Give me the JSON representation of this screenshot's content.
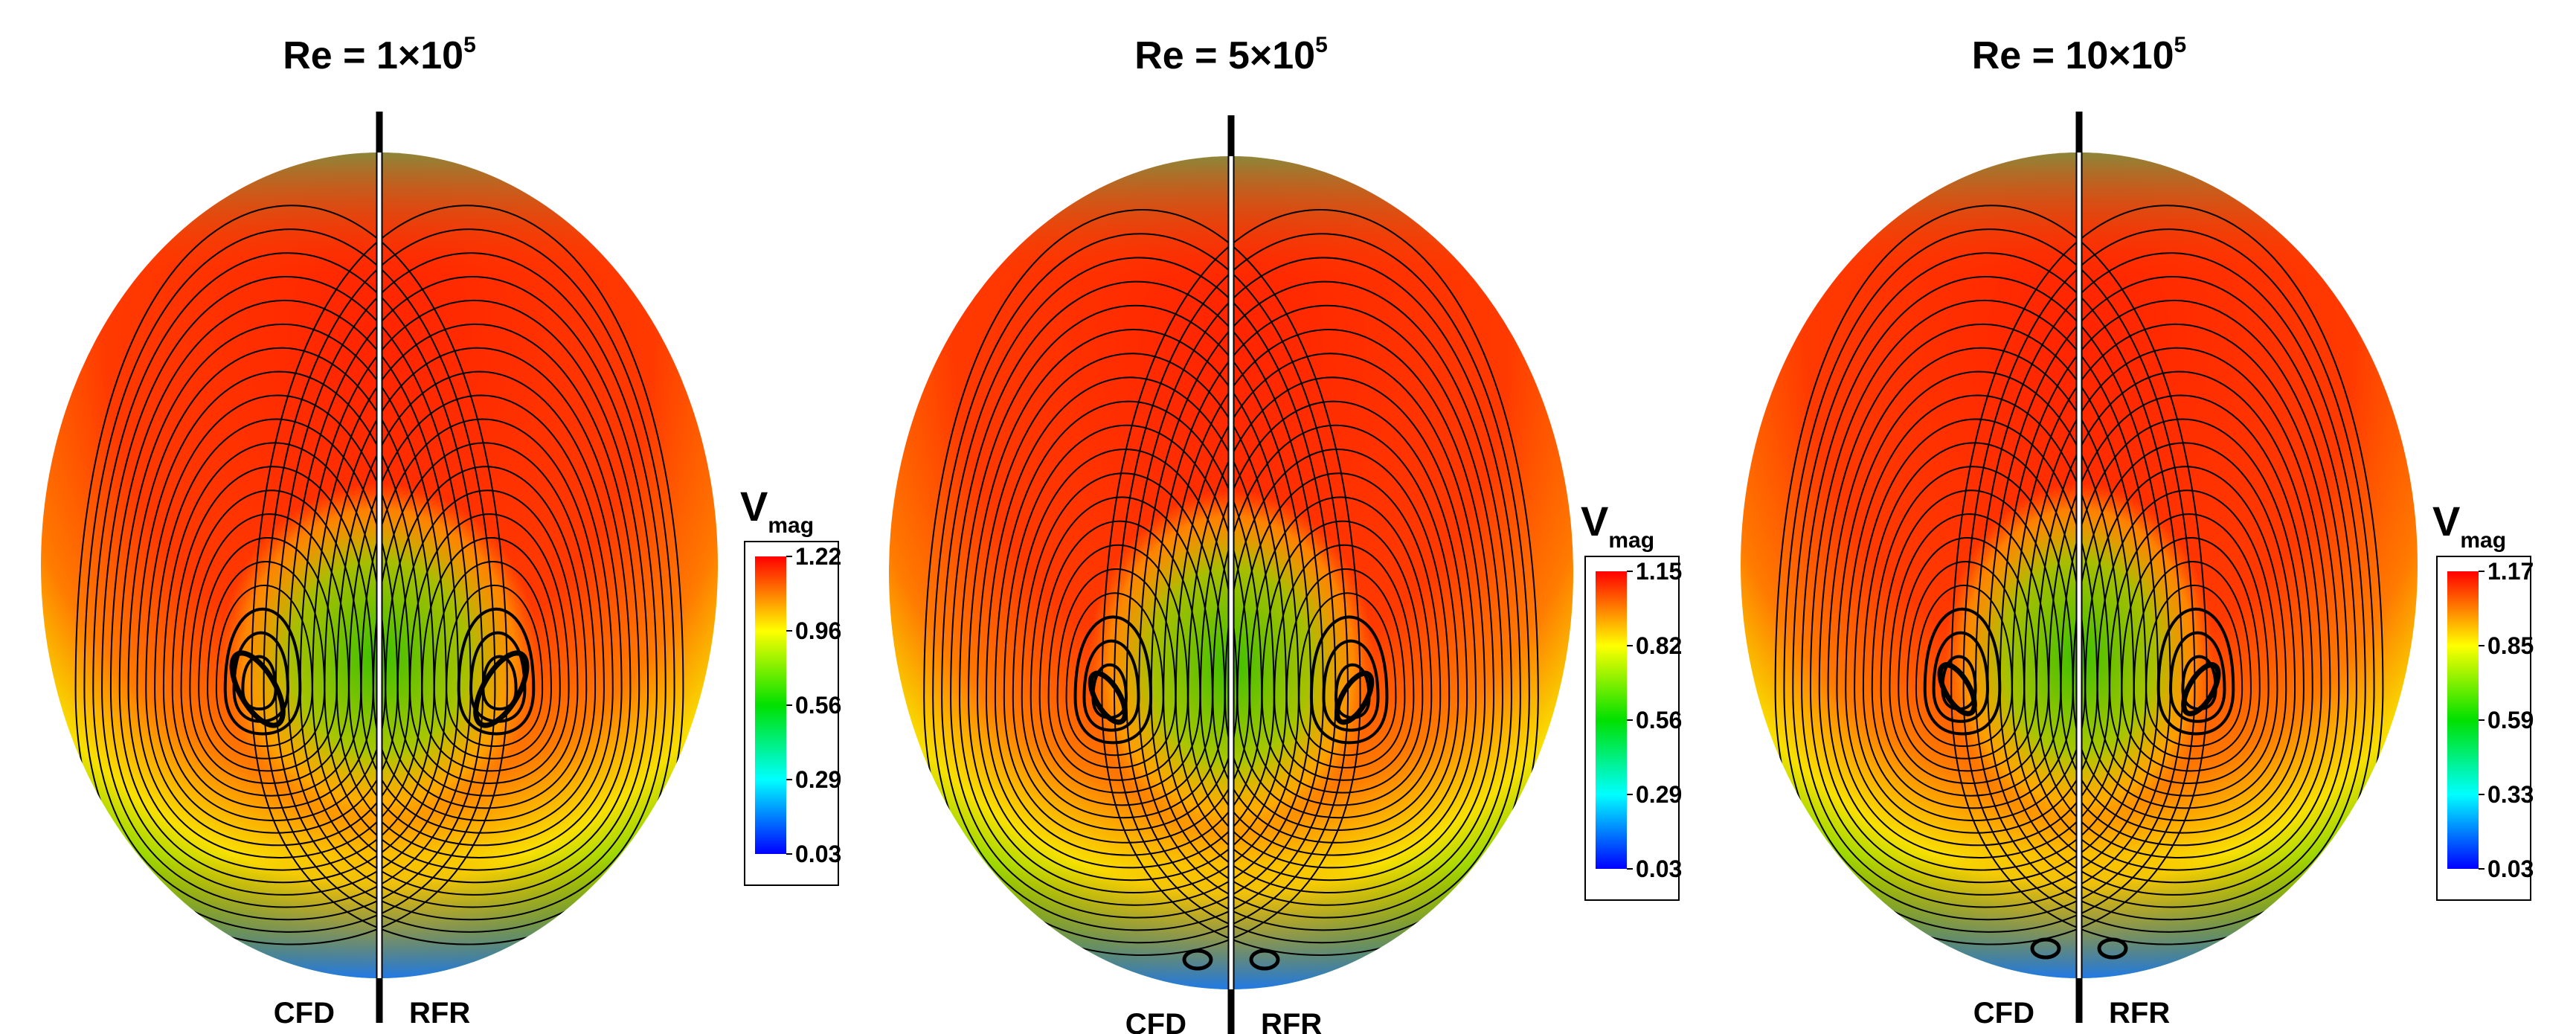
{
  "panels": [
    {
      "title_prefix": "Re = ",
      "title_mantissa": "1",
      "title_times": "×10",
      "title_exponent": "5",
      "left_label": "CFD",
      "right_label": "RFR",
      "legend_symbol": "V",
      "legend_subscript": "mag",
      "legend_ticks": [
        "1.22",
        "0.96",
        "0.56",
        "0.29",
        "0.03"
      ]
    },
    {
      "title_prefix": "Re = ",
      "title_mantissa": "5",
      "title_times": "×10",
      "title_exponent": "5",
      "left_label": "CFD",
      "right_label": "RFR",
      "legend_symbol": "V",
      "legend_subscript": "mag",
      "legend_ticks": [
        "1.15",
        "0.82",
        "0.56",
        "0.29",
        "0.03"
      ]
    },
    {
      "title_prefix": "Re = ",
      "title_mantissa": "10",
      "title_times": "×10",
      "title_exponent": "5",
      "left_label": "CFD",
      "right_label": "RFR",
      "legend_symbol": "V",
      "legend_subscript": "mag",
      "legend_ticks": [
        "1.17",
        "0.85",
        "0.59",
        "0.33",
        "0.03"
      ]
    }
  ],
  "colormap": [
    "#0000ff",
    "#00ffff",
    "#00e000",
    "#ffff00",
    "#ff0000"
  ]
}
